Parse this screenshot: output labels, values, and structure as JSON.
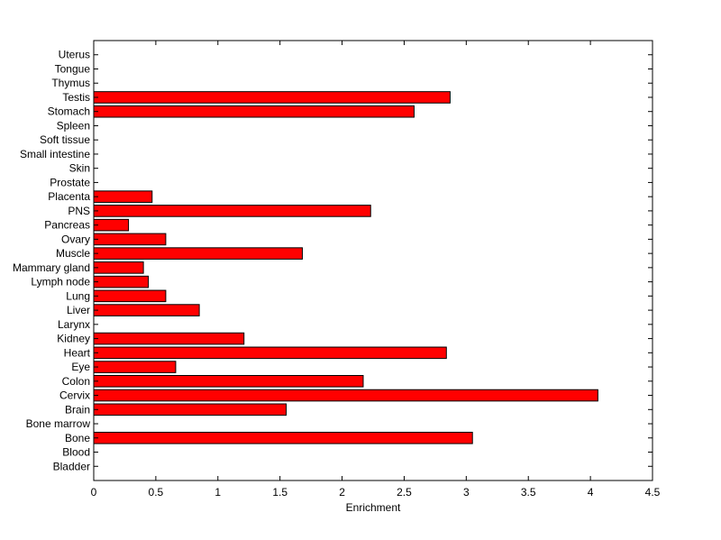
{
  "chart_data": {
    "type": "bar",
    "orientation": "horizontal",
    "title": "",
    "xlabel": "Enrichment",
    "ylabel": "",
    "xlim": [
      0,
      4.5
    ],
    "xticks": [
      0,
      0.5,
      1,
      1.5,
      2,
      2.5,
      3,
      3.5,
      4,
      4.5
    ],
    "xtick_labels": [
      "0",
      "0.5",
      "1",
      "1.5",
      "2",
      "2.5",
      "3",
      "3.5",
      "4",
      "4.5"
    ],
    "grid": false,
    "legend": "none",
    "bar_color": "#ff0000",
    "bar_edge_color": "#000000",
    "categories": [
      "Bladder",
      "Blood",
      "Bone",
      "Bone marrow",
      "Brain",
      "Cervix",
      "Colon",
      "Eye",
      "Heart",
      "Kidney",
      "Larynx",
      "Liver",
      "Lung",
      "Lymph node",
      "Mammary gland",
      "Muscle",
      "Ovary",
      "Pancreas",
      "PNS",
      "Placenta",
      "Prostate",
      "Skin",
      "Small intestine",
      "Soft tissue",
      "Spleen",
      "Stomach",
      "Testis",
      "Thymus",
      "Tongue",
      "Uterus"
    ],
    "values": [
      0,
      0,
      3.05,
      0,
      1.55,
      4.06,
      2.17,
      0.66,
      2.84,
      1.21,
      0,
      0.85,
      0.58,
      0.44,
      0.4,
      1.68,
      0.58,
      0.28,
      2.23,
      0.47,
      0,
      0,
      0,
      0,
      0,
      2.58,
      2.87,
      0,
      0,
      0
    ]
  }
}
